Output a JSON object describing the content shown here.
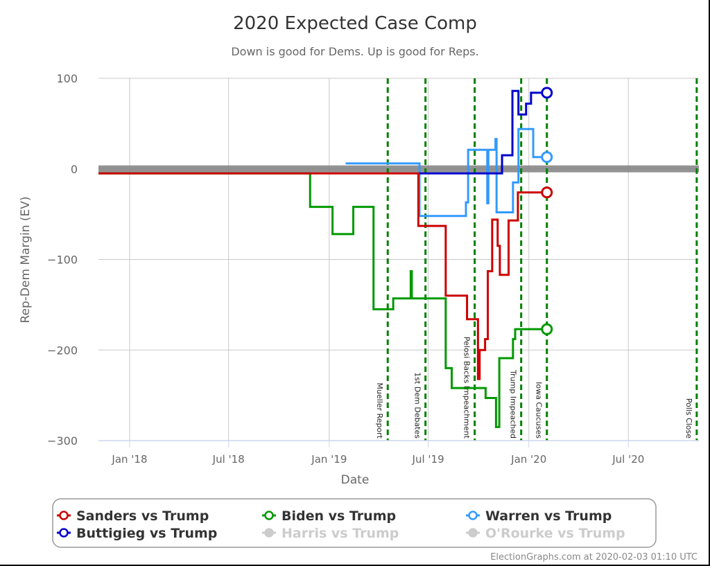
{
  "chart_data": {
    "type": "line",
    "title": "2020 Expected Case Comp",
    "subtitle": "Down is good for Dems. Up is good for Reps.",
    "xlabel": "Date",
    "ylabel": "Rep-Dem Margin (EV)",
    "xlim": [
      "2017-11-05",
      "2020-11-07"
    ],
    "ylim": [
      -300,
      100
    ],
    "yticks": [
      100,
      0,
      -100,
      -200,
      -300
    ],
    "ytick_labels": [
      "100",
      "0",
      "−100",
      "−200",
      "−300"
    ],
    "xticks": [
      "2018-01-01",
      "2018-07-01",
      "2019-01-01",
      "2019-07-01",
      "2020-01-01",
      "2020-07-01"
    ],
    "xtick_labels": [
      "Jan '18",
      "Jul '18",
      "Jan '19",
      "Jul '19",
      "Jan '20",
      "Jul '20"
    ],
    "grid": true,
    "zero_band_color": "#808080",
    "events": [
      {
        "date": "2019-04-18",
        "label": "Mueller Report"
      },
      {
        "date": "2019-06-26",
        "label": "1st Dem Debates"
      },
      {
        "date": "2019-09-24",
        "label": "Pelosi Backs Impeachment"
      },
      {
        "date": "2019-12-18",
        "label": "Trump Impeached"
      },
      {
        "date": "2020-02-03",
        "label": "Iowa Caucuses"
      },
      {
        "date": "2020-11-03",
        "label": "Polls Close"
      }
    ],
    "event_color": "#008000",
    "series": [
      {
        "name": "Warren vs Trump",
        "color": "#3399ff",
        "step": true,
        "points": [
          [
            "2019-01-31",
            6
          ],
          [
            "2019-06-15",
            -52
          ],
          [
            "2019-09-08",
            -37
          ],
          [
            "2019-09-12",
            21
          ],
          [
            "2019-10-17",
            -38
          ],
          [
            "2019-10-19",
            21
          ],
          [
            "2019-11-01",
            33
          ],
          [
            "2019-11-03",
            -48
          ],
          [
            "2019-12-03",
            -15
          ],
          [
            "2019-12-13",
            44
          ],
          [
            "2020-01-09",
            13
          ],
          [
            "2020-02-03",
            13
          ]
        ]
      },
      {
        "name": "Buttigieg vs Trump",
        "color": "#0000cc",
        "step": true,
        "points": [
          [
            "2019-06-15",
            -5
          ],
          [
            "2019-11-13",
            15
          ],
          [
            "2019-12-02",
            86
          ],
          [
            "2019-12-13",
            60
          ],
          [
            "2019-12-27",
            72
          ],
          [
            "2020-01-05",
            84
          ],
          [
            "2020-02-03",
            84
          ]
        ]
      },
      {
        "name": "Biden vs Trump",
        "color": "#009900",
        "step": true,
        "points": [
          [
            "2017-11-05",
            -5
          ],
          [
            "2018-11-27",
            -42
          ],
          [
            "2019-01-07",
            -72
          ],
          [
            "2019-02-14",
            -42
          ],
          [
            "2019-03-23",
            -155
          ],
          [
            "2019-04-28",
            -143
          ],
          [
            "2019-05-30",
            -113
          ],
          [
            "2019-06-01",
            -143
          ],
          [
            "2019-08-02",
            -220
          ],
          [
            "2019-08-13",
            -242
          ],
          [
            "2019-10-14",
            -253
          ],
          [
            "2019-11-02",
            -285
          ],
          [
            "2019-11-08",
            -209
          ],
          [
            "2019-12-03",
            -188
          ],
          [
            "2019-12-07",
            -177
          ],
          [
            "2020-02-03",
            -177
          ]
        ]
      },
      {
        "name": "Sanders vs Trump",
        "color": "#cc0000",
        "step": true,
        "points": [
          [
            "2017-11-05",
            -5
          ],
          [
            "2019-06-13",
            -63
          ],
          [
            "2019-08-02",
            -140
          ],
          [
            "2019-09-10",
            -166
          ],
          [
            "2019-09-30",
            -232
          ],
          [
            "2019-10-03",
            -200
          ],
          [
            "2019-10-13",
            -188
          ],
          [
            "2019-10-18",
            -113
          ],
          [
            "2019-10-26",
            -56
          ],
          [
            "2019-11-05",
            -85
          ],
          [
            "2019-11-09",
            -117
          ],
          [
            "2019-11-25",
            -57
          ],
          [
            "2019-12-12",
            -26
          ],
          [
            "2020-02-03",
            -26
          ]
        ]
      }
    ],
    "legend": {
      "placement": "bottom",
      "entries": [
        {
          "label": "Sanders vs Trump",
          "color": "#cc0000",
          "active": true
        },
        {
          "label": "Biden vs Trump",
          "color": "#009900",
          "active": true
        },
        {
          "label": "Warren vs Trump",
          "color": "#3399ff",
          "active": true
        },
        {
          "label": "Buttigieg vs Trump",
          "color": "#0000cc",
          "active": true
        },
        {
          "label": "Harris vs Trump",
          "color": "#cccccc",
          "active": false
        },
        {
          "label": "O'Rourke vs Trump",
          "color": "#cccccc",
          "active": false
        }
      ]
    },
    "credit": "ElectionGraphs.com at 2020-02-03 01:10 UTC"
  }
}
